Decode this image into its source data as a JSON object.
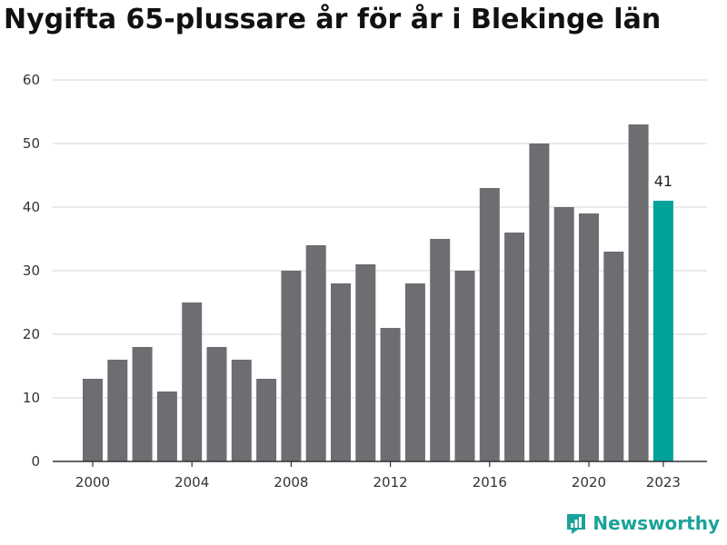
{
  "chart_data": {
    "type": "bar",
    "title": "Nygifta 65-plussare år för år i Blekinge län",
    "x": [
      2000,
      2001,
      2002,
      2003,
      2004,
      2005,
      2006,
      2007,
      2008,
      2009,
      2010,
      2011,
      2012,
      2013,
      2014,
      2015,
      2016,
      2017,
      2018,
      2019,
      2020,
      2021,
      2022,
      2023
    ],
    "values": [
      13,
      16,
      18,
      11,
      25,
      18,
      16,
      13,
      30,
      34,
      28,
      31,
      21,
      28,
      35,
      30,
      43,
      36,
      50,
      40,
      39,
      33,
      53,
      41
    ],
    "x_tick_labels": [
      "2000",
      "2004",
      "2008",
      "2012",
      "2016",
      "2020",
      "2023"
    ],
    "y_tick_labels": [
      "0",
      "10",
      "20",
      "30",
      "40",
      "50",
      "60"
    ],
    "ylim": [
      0,
      60
    ],
    "xlabel": "",
    "ylabel": "",
    "grid": true,
    "highlight": {
      "category": 2023,
      "label": "41"
    },
    "colors": {
      "bar": "#6e6d72",
      "highlight": "#00a29a",
      "grid": "#dddddd",
      "axis": "#333333"
    }
  },
  "brand": {
    "name": "Newsworthy",
    "icon": "chart-bubble-icon",
    "color": "#1aa39a"
  }
}
